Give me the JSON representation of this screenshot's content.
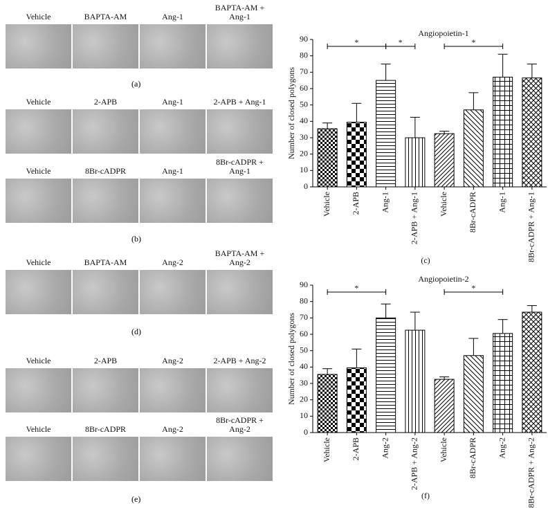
{
  "panels": [
    {
      "label": "(a)",
      "rows": [
        [
          "Vehicle",
          "BAPTA-AM",
          "Ang-1",
          "BAPTA-AM + Ang-1"
        ]
      ]
    },
    {
      "label": "(b)",
      "rows": [
        [
          "Vehicle",
          "2-APB",
          "Ang-1",
          "2-APB + Ang-1"
        ],
        [
          "Vehicle",
          "8Br-cADPR",
          "Ang-1",
          "8Br-cADPR + Ang-1"
        ]
      ]
    },
    {
      "label": "(d)",
      "rows": [
        [
          "Vehicle",
          "BAPTA-AM",
          "Ang-2",
          "BAPTA-AM + Ang-2"
        ]
      ]
    },
    {
      "label": "(e)",
      "rows": [
        [
          "Vehicle",
          "2-APB",
          "Ang-2",
          "2-APB + Ang-2"
        ],
        [
          "Vehicle",
          "8Br-cADPR",
          "Ang-2",
          "8Br-cADPR + Ang-2"
        ]
      ]
    }
  ],
  "chart_data": [
    {
      "type": "bar",
      "title": "Angiopoietin-1",
      "panel_label": "(c)",
      "y_label": "Number of closed polygons",
      "categories": [
        "Vehicle",
        "2-APB",
        "Ang-1",
        "2-APB + Ang-1",
        "Vehicle",
        "8Br-cADPR",
        "Ang-1",
        "8Br-cADPR + Ang-1"
      ],
      "values": [
        35.5,
        39.5,
        65,
        30,
        32.5,
        47,
        67,
        66.5
      ],
      "errors": [
        3.5,
        11.5,
        10,
        12.5,
        1.5,
        10.5,
        14,
        8.5
      ],
      "color": "#000000",
      "ylim": [
        0,
        90
      ],
      "yticks": [
        0,
        10,
        20,
        30,
        40,
        50,
        60,
        70,
        80,
        90
      ],
      "annotations": [
        {
          "from": 0,
          "to": 2,
          "text": "*"
        },
        {
          "from": 2,
          "to": 3,
          "text": "*"
        },
        {
          "from": 4,
          "to": 6,
          "text": "*"
        }
      ]
    },
    {
      "type": "bar",
      "title": "Angiopoietin-2",
      "panel_label": "(f)",
      "y_label": "Number of closed polygons",
      "categories": [
        "Vehicle",
        "2-APB",
        "Ang-2",
        "2-APB + Ang-2",
        "Vehicle",
        "8Br-cADPR",
        "Ang-2",
        "8Br-cADPR + Ang-2"
      ],
      "values": [
        35.5,
        39.5,
        70,
        62.5,
        32.5,
        47,
        60.5,
        73.5
      ],
      "errors": [
        3.5,
        11.5,
        8.5,
        11,
        1.5,
        10.5,
        8.5,
        4
      ],
      "color": "#000000",
      "ylim": [
        0,
        90
      ],
      "yticks": [
        0,
        10,
        20,
        30,
        40,
        50,
        60,
        70,
        80,
        90
      ],
      "annotations": [
        {
          "from": 0,
          "to": 2,
          "text": "*"
        },
        {
          "from": 4,
          "to": 6,
          "text": "*"
        }
      ]
    }
  ]
}
